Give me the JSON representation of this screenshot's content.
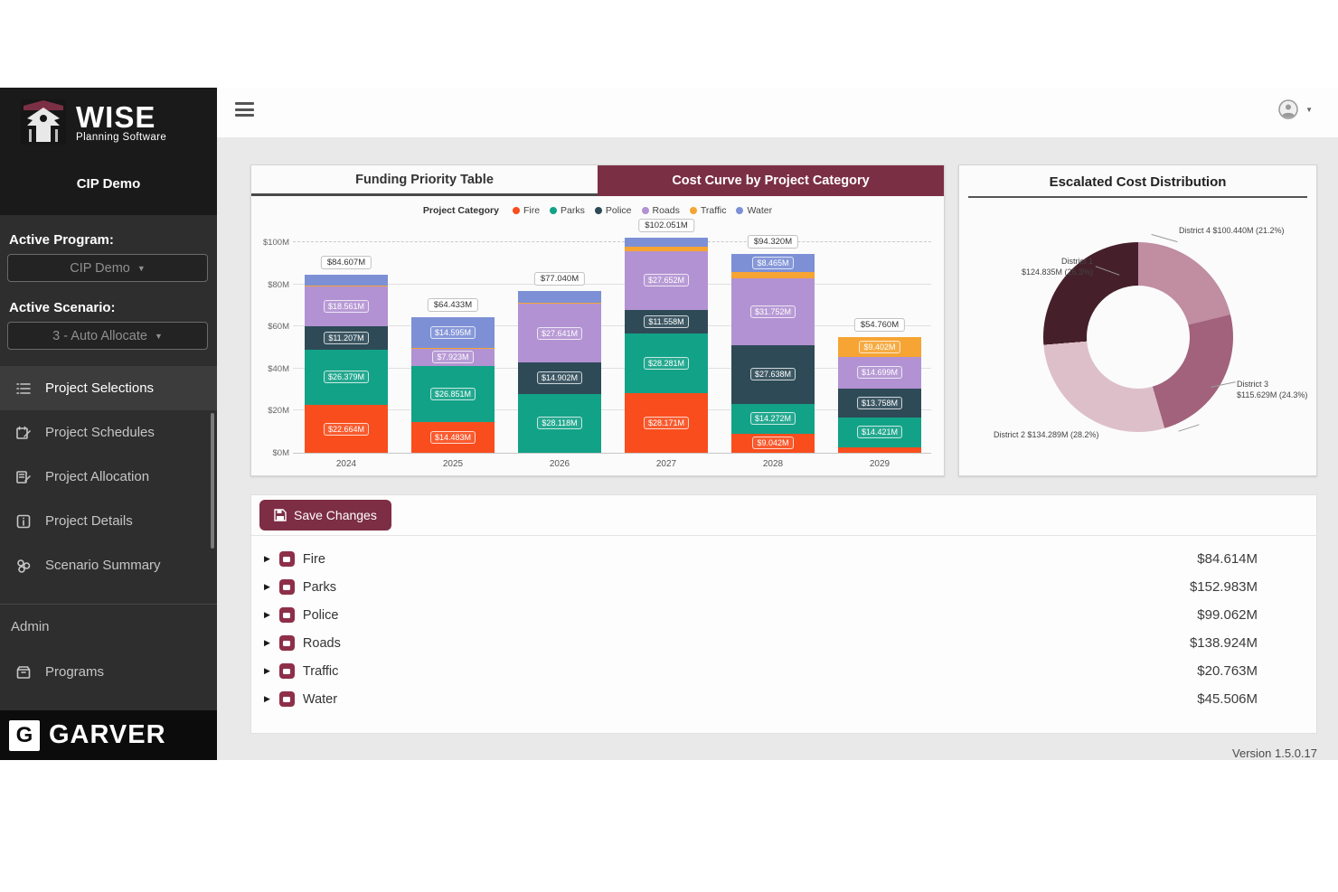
{
  "sidebar": {
    "logo": {
      "title": "WISE",
      "subtitle": "Planning Software"
    },
    "program_title": "CIP Demo",
    "active_program": {
      "label": "Active Program:",
      "value": "CIP Demo"
    },
    "active_scenario": {
      "label": "Active Scenario:",
      "value": "3 - Auto Allocate"
    },
    "nav": [
      {
        "label": "Project Selections",
        "icon": "list-check-icon",
        "active": true
      },
      {
        "label": "Project Schedules",
        "icon": "calendar-edit-icon",
        "active": false
      },
      {
        "label": "Project Allocation",
        "icon": "book-edit-icon",
        "active": false
      },
      {
        "label": "Project Details",
        "icon": "info-square-icon",
        "active": false
      },
      {
        "label": "Scenario Summary",
        "icon": "summary-icon",
        "active": false
      }
    ],
    "admin": {
      "label": "Admin",
      "items": [
        {
          "label": "Programs",
          "icon": "box-icon"
        }
      ]
    },
    "footer_logo": "GARVER"
  },
  "topbar": {
    "menu_icon": "hamburger-icon",
    "user_icon": "user-circle-icon"
  },
  "cards": {
    "cost_curve": {
      "tabs": [
        {
          "label": "Funding Priority Table",
          "active": false
        },
        {
          "label": "Cost Curve by Project Category",
          "active": true
        }
      ],
      "legend_title": "Project Category"
    },
    "distribution": {
      "title": "Escalated Cost Distribution"
    }
  },
  "chart_data": [
    {
      "type": "bar",
      "stacked": true,
      "title": "Cost Curve by Project Category",
      "categories": [
        "2024",
        "2025",
        "2026",
        "2027",
        "2028",
        "2029"
      ],
      "series": [
        {
          "name": "Fire",
          "color": "#f94d1d",
          "values": [
            22.664,
            14.483,
            0,
            28.171,
            9.042,
            2.48
          ]
        },
        {
          "name": "Parks",
          "color": "#12a287",
          "values": [
            26.379,
            26.851,
            28.118,
            28.281,
            14.272,
            14.421
          ]
        },
        {
          "name": "Police",
          "color": "#2e4a57",
          "values": [
            11.207,
            0,
            14.902,
            11.558,
            27.638,
            13.758
          ]
        },
        {
          "name": "Roads",
          "color": "#b292d2",
          "values": [
            18.561,
            7.923,
            27.641,
            27.652,
            31.752,
            14.699
          ]
        },
        {
          "name": "Traffic",
          "color": "#f6a433",
          "values": [
            0.801,
            0.581,
            0.752,
            2.049,
            3.151,
            9.402
          ]
        },
        {
          "name": "Water",
          "color": "#7d90d6",
          "values": [
            4.995,
            14.595,
            5.627,
            4.34,
            8.465,
            0
          ]
        }
      ],
      "totals_labels": [
        "$84.607M",
        "$64.433M",
        "$77.040M",
        "$102.051M",
        "$94.320M",
        "$54.760M"
      ],
      "ylabel_ticks": [
        "$0M",
        "$20M",
        "$40M",
        "$60M",
        "$80M",
        "$100M"
      ],
      "ylim": [
        0,
        110
      ],
      "grid": true,
      "legend_position": "top"
    },
    {
      "type": "pie",
      "subtype": "donut",
      "title": "Escalated Cost Distribution",
      "slices": [
        {
          "name": "District 4",
          "value": 100.44,
          "value_label": "$100.440M",
          "pct": 21.2,
          "color": "#c08da1"
        },
        {
          "name": "District 3",
          "value": 115.629,
          "value_label": "$115.629M",
          "pct": 24.3,
          "color": "#a2627c"
        },
        {
          "name": "District 2",
          "value": 134.289,
          "value_label": "$134.289M",
          "pct": 28.2,
          "color": "#ddbfca"
        },
        {
          "name": "District 1",
          "value": 124.835,
          "value_label": "$124.835M",
          "pct": 26.3,
          "color": "#45202b"
        }
      ]
    }
  ],
  "save_panel": {
    "button_label": "Save Changes",
    "categories": [
      {
        "name": "Fire",
        "value": "$84.614M"
      },
      {
        "name": "Parks",
        "value": "$152.983M"
      },
      {
        "name": "Police",
        "value": "$99.062M"
      },
      {
        "name": "Roads",
        "value": "$138.924M"
      },
      {
        "name": "Traffic",
        "value": "$20.763M"
      },
      {
        "name": "Water",
        "value": "$45.506M"
      }
    ]
  },
  "footer": {
    "version": "Version 1.5.0.17"
  }
}
